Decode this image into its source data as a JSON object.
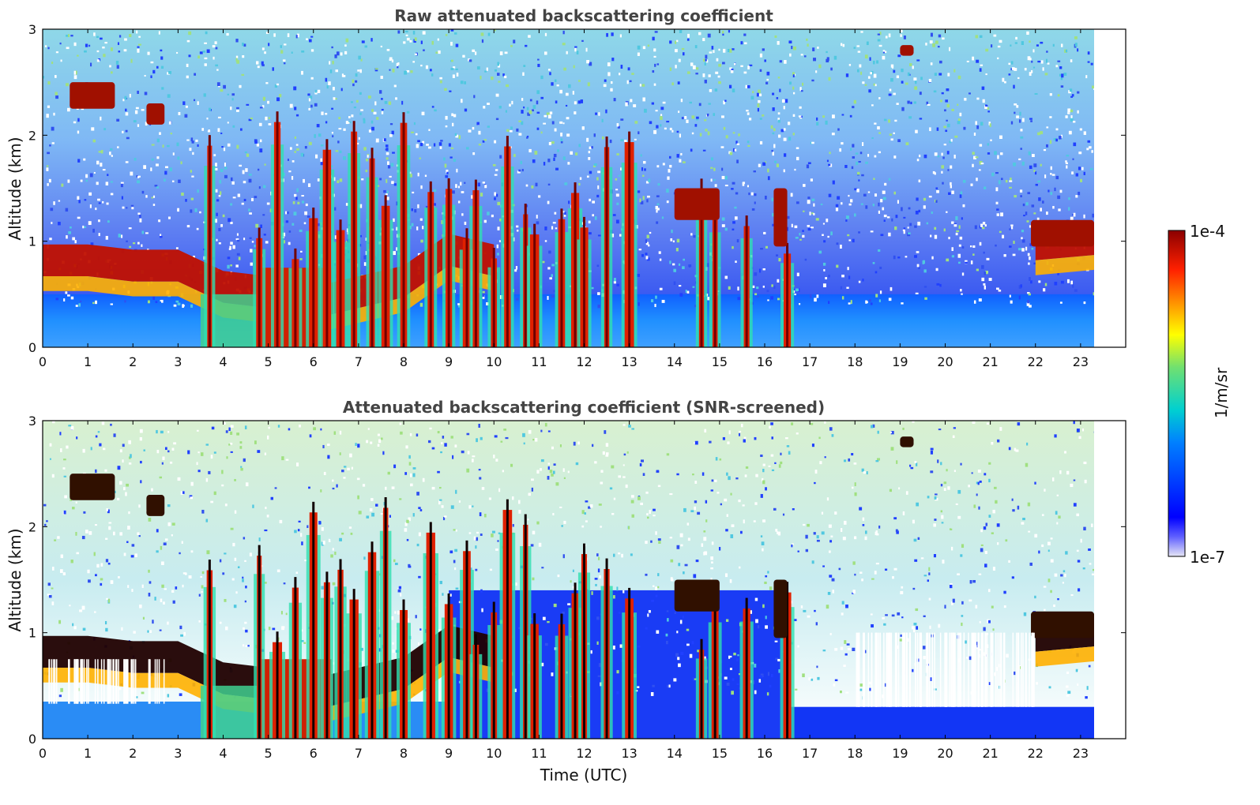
{
  "chart_data": [
    {
      "type": "heatmap",
      "title": "Raw attenuated backscattering coefficient",
      "ylabel": "Altitude (km)",
      "xlabel": "",
      "xlim": [
        0,
        24
      ],
      "ylim": [
        0,
        3
      ],
      "xticks": [
        "0",
        "1",
        "2",
        "3",
        "4",
        "5",
        "6",
        "7",
        "8",
        "9",
        "10",
        "11",
        "12",
        "13",
        "14",
        "15",
        "16",
        "17",
        "18",
        "19",
        "20",
        "21",
        "22",
        "23"
      ],
      "yticks": [
        "0",
        "1",
        "2",
        "3"
      ],
      "data_end_time": 23.3,
      "boundary_layer_top_km": [
        [
          0,
          0.85
        ],
        [
          1,
          0.85
        ],
        [
          2,
          0.8
        ],
        [
          3,
          0.8
        ],
        [
          4,
          0.6
        ],
        [
          5,
          0.55
        ],
        [
          6,
          0.45
        ],
        [
          7,
          0.55
        ],
        [
          8,
          0.65
        ],
        [
          9,
          0.95
        ],
        [
          10,
          0.85
        ],
        [
          22,
          1.0
        ],
        [
          23.3,
          1.05
        ]
      ],
      "cloud_features": [
        {
          "t": [
            0.6,
            1.6
          ],
          "z": [
            2.25,
            2.5
          ]
        },
        {
          "t": [
            2.3,
            2.7
          ],
          "z": [
            2.1,
            2.3
          ]
        },
        {
          "t": [
            14.0,
            15.0
          ],
          "z": [
            1.2,
            1.5
          ]
        },
        {
          "t": [
            16.2,
            16.5
          ],
          "z": [
            0.95,
            1.5
          ]
        },
        {
          "t": [
            19.0,
            19.3
          ],
          "z": [
            2.75,
            2.85
          ]
        },
        {
          "t": [
            21.9,
            23.3
          ],
          "z": [
            0.95,
            1.2
          ]
        }
      ]
    },
    {
      "type": "heatmap",
      "title": "Attenuated backscattering coefficient (SNR-screened)",
      "ylabel": "Altitude (km)",
      "xlabel": "Time (UTC)",
      "xlim": [
        0,
        24
      ],
      "ylim": [
        0,
        3
      ],
      "xticks": [
        "0",
        "1",
        "2",
        "3",
        "4",
        "5",
        "6",
        "7",
        "8",
        "9",
        "10",
        "11",
        "12",
        "13",
        "14",
        "15",
        "16",
        "17",
        "18",
        "19",
        "20",
        "21",
        "22",
        "23"
      ],
      "yticks": [
        "0",
        "1",
        "2",
        "3"
      ],
      "data_end_time": 23.3
    }
  ],
  "colorbar": {
    "label": "1/m/sr",
    "max_label": "1e-4",
    "min_label": "1e-7",
    "colormap": [
      "#e6e6f5",
      "#0000ff",
      "#0080ff",
      "#00d0d0",
      "#70e070",
      "#ffff00",
      "#ff9000",
      "#ff2000",
      "#8b0000"
    ]
  }
}
